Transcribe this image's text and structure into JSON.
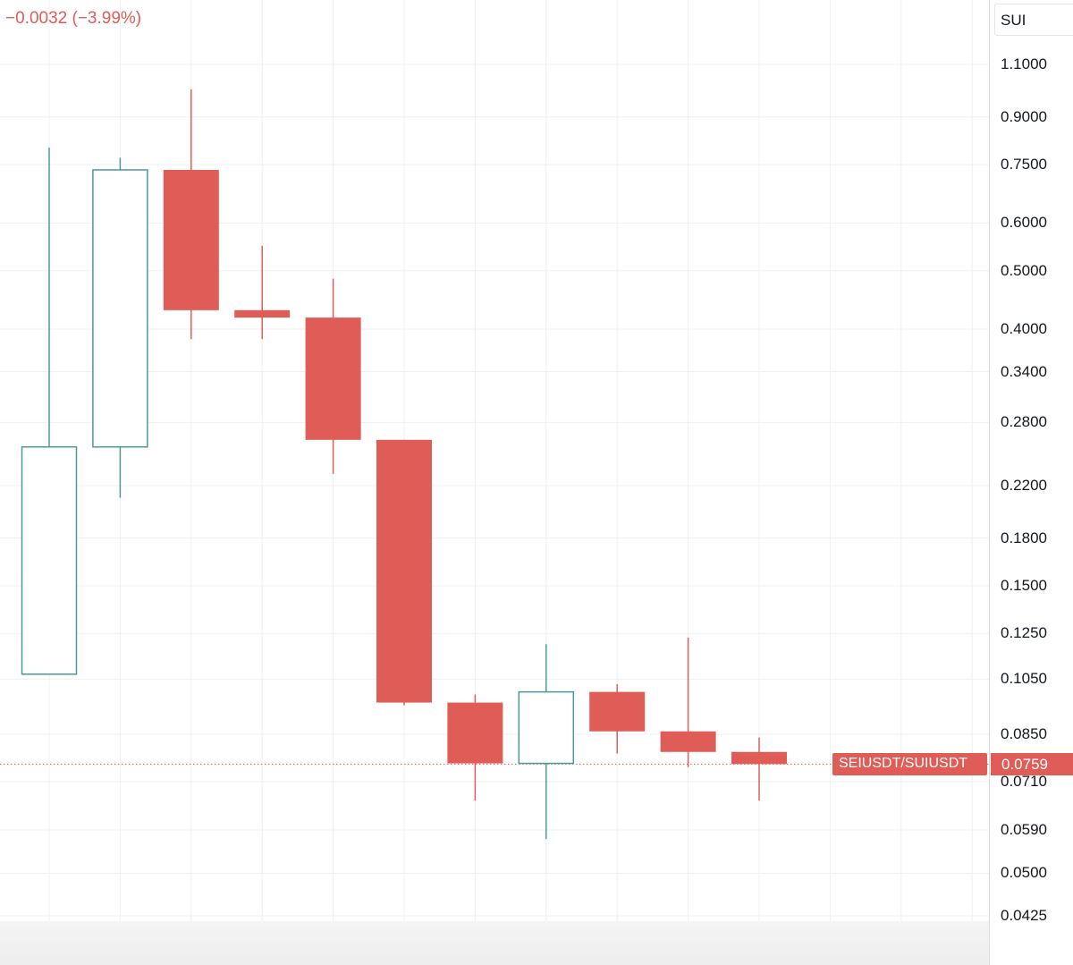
{
  "header": {
    "change_text": "−0.0032 (−3.99%)",
    "symbol_input_value": "SUI"
  },
  "colors": {
    "up": "#4a9a96",
    "down": "#e05c57",
    "grid": "#eef0f3",
    "background": "#ffffff"
  },
  "last_price": {
    "series_label": "SEIUSDT/SUIUSDT",
    "value_label": "0.0759"
  },
  "chart_data": {
    "type": "candlestick",
    "scale": "log",
    "ylim": [
      0.0425,
      1.1
    ],
    "grid": true,
    "y_ticks": [
      "1.1000",
      "0.9000",
      "0.7500",
      "0.6000",
      "0.5000",
      "0.4000",
      "0.3400",
      "0.2800",
      "0.2200",
      "0.1800",
      "0.1500",
      "0.1250",
      "0.1050",
      "0.0850",
      "0.0710",
      "0.0590",
      "0.0500",
      "0.0425"
    ],
    "last_price": 0.0759,
    "candles": [
      {
        "open": 0.107,
        "high": 0.8,
        "low": 0.107,
        "close": 0.255
      },
      {
        "open": 0.255,
        "high": 0.77,
        "low": 0.21,
        "close": 0.735
      },
      {
        "open": 0.735,
        "high": 1.0,
        "low": 0.385,
        "close": 0.43
      },
      {
        "open": 0.43,
        "high": 0.55,
        "low": 0.385,
        "close": 0.418
      },
      {
        "open": 0.418,
        "high": 0.485,
        "low": 0.23,
        "close": 0.262
      },
      {
        "open": 0.262,
        "high": 0.262,
        "low": 0.095,
        "close": 0.096
      },
      {
        "open": 0.096,
        "high": 0.099,
        "low": 0.066,
        "close": 0.0761
      },
      {
        "open": 0.0761,
        "high": 0.12,
        "low": 0.057,
        "close": 0.1
      },
      {
        "open": 0.1,
        "high": 0.103,
        "low": 0.079,
        "close": 0.086
      },
      {
        "open": 0.086,
        "high": 0.123,
        "low": 0.075,
        "close": 0.0795
      },
      {
        "open": 0.0795,
        "high": 0.084,
        "low": 0.066,
        "close": 0.0759
      }
    ]
  }
}
